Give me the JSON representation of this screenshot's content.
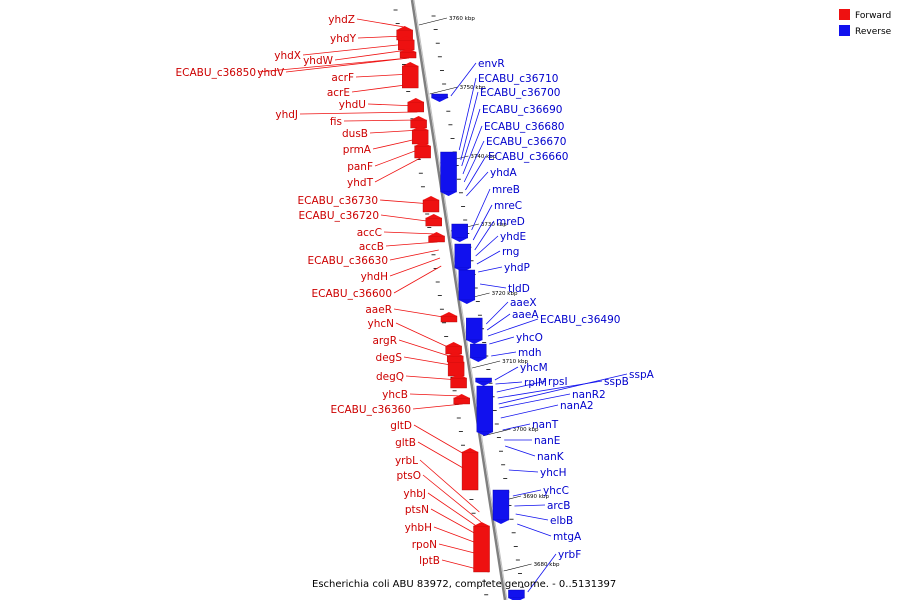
{
  "caption": "Escherichia coli ABU 83972, complete genome. - 0..5131397",
  "legend": [
    {
      "label": "Forward",
      "color": "#ee1111"
    },
    {
      "label": "Reverse",
      "color": "#1111ee"
    }
  ],
  "colors": {
    "forward": "#ee1111",
    "reverse": "#1111ee",
    "forward_text": "#cc0000",
    "reverse_text": "#0000cc",
    "axis": "#808080"
  },
  "kbp_ticks": [
    {
      "kbp": 3760,
      "label": "3760 kbp"
    },
    {
      "kbp": 3750,
      "label": "3750 kbp"
    },
    {
      "kbp": 3740,
      "label": "3740 kbp"
    },
    {
      "kbp": 3730,
      "label": "3730 kbp"
    },
    {
      "kbp": 3720,
      "label": "3720 kbp"
    },
    {
      "kbp": 3710,
      "label": "3710 kbp"
    },
    {
      "kbp": 3700,
      "label": "3700 kbp"
    },
    {
      "kbp": 3690,
      "label": "3690 kbp"
    },
    {
      "kbp": 3680,
      "label": "3680 kbp"
    }
  ],
  "forward_genes": [
    "yhdZ",
    "yhdY",
    "yhdX",
    "yhdW",
    "ECABU_c36850",
    "yhdV",
    "acrF",
    "acrE",
    "yhdU",
    "yhdJ",
    "fis",
    "dusB",
    "prmA",
    "panF",
    "yhdT",
    "ECABU_c36730",
    "ECABU_c36720",
    "accC",
    "accB",
    "ECABU_c36630",
    "yhdH",
    "ECABU_c36600",
    "aaeR",
    "yhcN",
    "argR",
    "degS",
    "degQ",
    "yhcB",
    "ECABU_c36360",
    "gltD",
    "gltB",
    "yrbL",
    "ptsO",
    "yhbJ",
    "ptsN",
    "yhbH",
    "rpoN",
    "lptB"
  ],
  "reverse_genes": [
    "envR",
    "ECABU_c36710",
    "ECABU_c36700",
    "ECABU_c36690",
    "ECABU_c36680",
    "ECABU_c36670",
    "ECABU_c36660",
    "yhdA",
    "mreB",
    "mreC",
    "mreD",
    "yhdE",
    "rng",
    "yhdP",
    "tldD",
    "aaeX",
    "aaeA",
    "ECABU_c36490",
    "yhcO",
    "mdh",
    "yhcM",
    "rplM",
    "rpsI",
    "sspB",
    "sspA",
    "nanR2",
    "nanA2",
    "nanT",
    "nanE",
    "nanK",
    "yhcH",
    "yhcC",
    "arcB",
    "elbB",
    "mtgA",
    "yrbF"
  ]
}
